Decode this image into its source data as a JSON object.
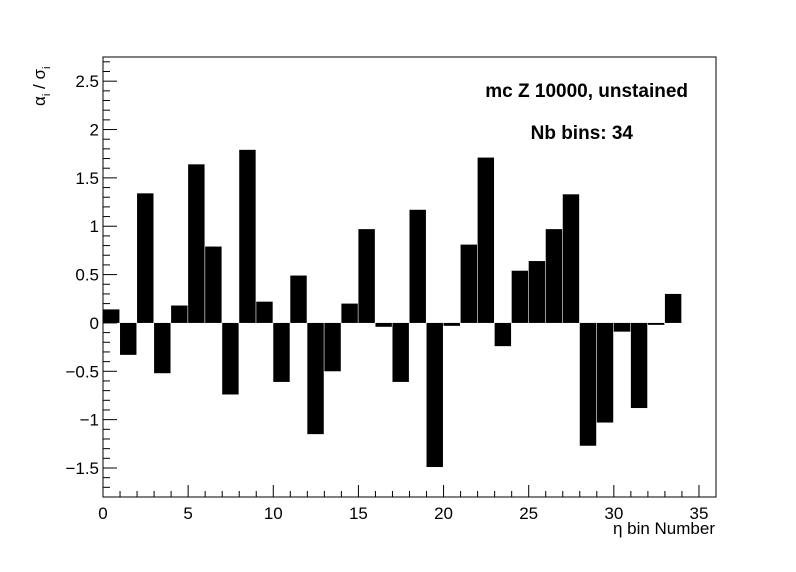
{
  "chart_data": {
    "type": "bar",
    "title": "",
    "xlabel": "η bin Number",
    "ylabel": {
      "alpha": "α",
      "sub1": "i",
      "sep": " / ",
      "sigma": "σ",
      "sub2": "i"
    },
    "annotations": [
      "mc Z 10000, unstained",
      "Nb bins: 34"
    ],
    "xlim": [
      0,
      36
    ],
    "ylim": [
      -1.8,
      2.75
    ],
    "x_ticks": [
      0,
      5,
      10,
      15,
      20,
      25,
      30,
      35
    ],
    "x_tick_labels": [
      "0",
      "5",
      "10",
      "15",
      "20",
      "25",
      "30",
      "35"
    ],
    "y_ticks": [
      -1.5,
      -1,
      -0.5,
      0,
      0.5,
      1,
      1.5,
      2,
      2.5
    ],
    "y_tick_labels": [
      "−1.5",
      "−1",
      "−0.5",
      "0",
      "0.5",
      "1",
      "1.5",
      "2",
      "2.5"
    ],
    "bin_width": 1,
    "x": [
      0,
      1,
      2,
      3,
      4,
      5,
      6,
      7,
      8,
      9,
      10,
      11,
      12,
      13,
      14,
      15,
      16,
      17,
      18,
      19,
      20,
      21,
      22,
      23,
      24,
      25,
      26,
      27,
      28,
      29,
      30,
      31,
      32,
      33
    ],
    "values": [
      0.14,
      -0.33,
      1.34,
      -0.52,
      0.18,
      1.64,
      0.79,
      -0.74,
      1.79,
      0.22,
      -0.61,
      0.49,
      -1.15,
      -0.5,
      0.2,
      0.97,
      -0.04,
      -0.61,
      1.17,
      -1.49,
      -0.03,
      0.81,
      1.71,
      -0.24,
      0.54,
      0.64,
      0.97,
      1.33,
      -1.27,
      -1.03,
      -0.09,
      -0.88,
      -0.02,
      0.3
    ],
    "bar_color": "#000000",
    "grid": false,
    "legend": "none"
  }
}
